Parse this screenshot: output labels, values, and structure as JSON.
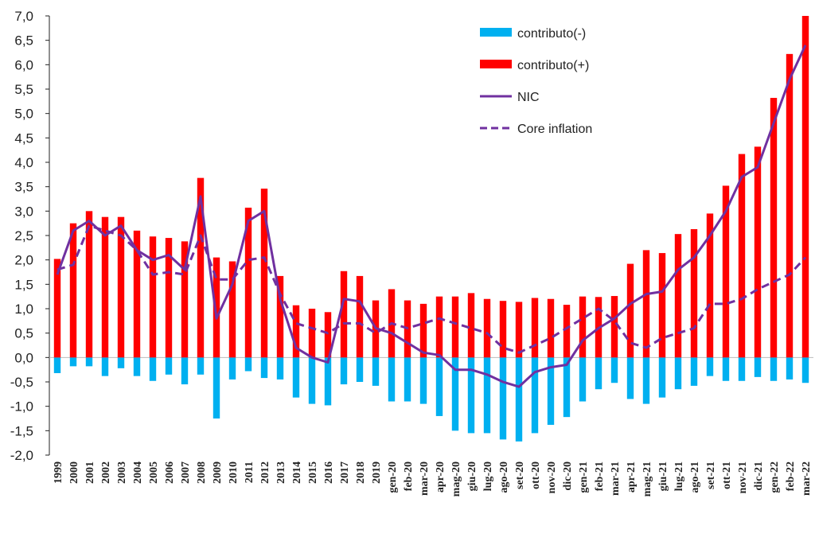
{
  "chart_data": {
    "type": "bar",
    "title": "",
    "xlabel": "",
    "ylabel": "",
    "ylim": [
      -2.0,
      7.0
    ],
    "y_ticks": [
      "7,0",
      "6,5",
      "6,0",
      "5,5",
      "5,0",
      "4,5",
      "4,0",
      "3,5",
      "3,0",
      "2,5",
      "2,0",
      "1,5",
      "1,0",
      "0,5",
      "0,0",
      "-0,5",
      "-1,0",
      "-1,5",
      "-2,0"
    ],
    "categories": [
      "1999",
      "2000",
      "2001",
      "2002",
      "2003",
      "2004",
      "2005",
      "2006",
      "2007",
      "2008",
      "2009",
      "2010",
      "2011",
      "2012",
      "2013",
      "2014",
      "2015",
      "2016",
      "2017",
      "2018",
      "2019",
      "gen-20",
      "feb-20",
      "mar-20",
      "apr-20",
      "mag-20",
      "giu-20",
      "lug-20",
      "ago-20",
      "set-20",
      "ott-20",
      "nov-20",
      "dic-20",
      "gen-21",
      "feb-21",
      "mar-21",
      "apr-21",
      "mag-21",
      "giu-21",
      "lug-21",
      "ago-21",
      "set-21",
      "ott-21",
      "nov-21",
      "dic-21",
      "gen-22",
      "feb-22",
      "mar-22"
    ],
    "series": [
      {
        "name": "contributo(-)",
        "kind": "bar",
        "color": "#00b0f0",
        "values": [
          -0.32,
          -0.18,
          -0.18,
          -0.38,
          -0.22,
          -0.38,
          -0.48,
          -0.35,
          -0.55,
          -0.35,
          -1.25,
          -0.45,
          -0.28,
          -0.42,
          -0.45,
          -0.82,
          -0.95,
          -0.98,
          -0.55,
          -0.5,
          -0.58,
          -0.9,
          -0.9,
          -0.95,
          -1.2,
          -1.5,
          -1.55,
          -1.55,
          -1.68,
          -1.72,
          -1.55,
          -1.38,
          -1.22,
          -0.9,
          -0.65,
          -0.52,
          -0.85,
          -0.95,
          -0.82,
          -0.65,
          -0.58,
          -0.38,
          -0.48,
          -0.48,
          -0.4,
          -0.48,
          -0.45,
          -0.52
        ]
      },
      {
        "name": "contributo(+)",
        "kind": "bar",
        "color": "#ff0000",
        "values": [
          2.02,
          2.75,
          3.0,
          2.88,
          2.88,
          2.6,
          2.48,
          2.45,
          2.38,
          3.68,
          2.05,
          1.97,
          3.07,
          3.46,
          1.67,
          1.07,
          1.0,
          0.93,
          1.77,
          1.67,
          1.17,
          1.4,
          1.17,
          1.1,
          1.25,
          1.25,
          1.32,
          1.2,
          1.16,
          1.14,
          1.22,
          1.2,
          1.08,
          1.25,
          1.24,
          1.26,
          1.92,
          2.2,
          2.14,
          2.53,
          2.63,
          2.95,
          3.52,
          4.17,
          4.32,
          5.32,
          6.22,
          7.0
        ]
      },
      {
        "name": "NIC",
        "kind": "line",
        "color": "#7030a0",
        "values": [
          1.7,
          2.6,
          2.8,
          2.5,
          2.7,
          2.2,
          2.0,
          2.1,
          1.8,
          3.3,
          0.8,
          1.5,
          2.8,
          3.0,
          1.2,
          0.2,
          0.0,
          -0.1,
          1.2,
          1.15,
          0.6,
          0.5,
          0.3,
          0.1,
          0.05,
          -0.25,
          -0.25,
          -0.35,
          -0.5,
          -0.6,
          -0.3,
          -0.2,
          -0.15,
          0.35,
          0.6,
          0.8,
          1.1,
          1.3,
          1.35,
          1.8,
          2.05,
          2.5,
          3.0,
          3.7,
          3.9,
          4.8,
          5.7,
          6.4
        ]
      },
      {
        "name": "Core inflation",
        "kind": "dashed-line",
        "color": "#7030a0",
        "values": [
          1.8,
          1.9,
          2.7,
          2.6,
          2.5,
          2.2,
          1.7,
          1.75,
          1.7,
          2.5,
          1.6,
          1.6,
          2.0,
          2.05,
          1.3,
          0.7,
          0.6,
          0.5,
          0.7,
          0.7,
          0.5,
          0.7,
          0.6,
          0.7,
          0.8,
          0.7,
          0.6,
          0.5,
          0.2,
          0.1,
          0.25,
          0.4,
          0.6,
          0.8,
          1.0,
          0.75,
          0.3,
          0.2,
          0.4,
          0.5,
          0.6,
          1.1,
          1.1,
          1.2,
          1.4,
          1.55,
          1.7,
          2.05
        ]
      }
    ],
    "legend": {
      "position": "top-right",
      "entries": [
        "contributo(-)",
        "contributo(+)",
        "NIC",
        "Core inflation"
      ]
    }
  }
}
